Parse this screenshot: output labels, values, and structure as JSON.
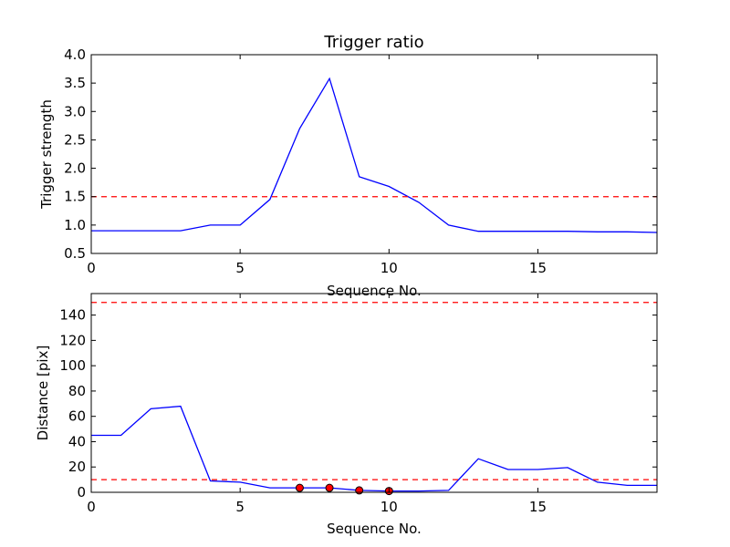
{
  "colors": {
    "line": "#0000ff",
    "threshold": "#ff0000",
    "marker_fill": "#ff0000",
    "marker_edge": "#000000",
    "axes": "#000000",
    "background": "#ffffff"
  },
  "chart_data": [
    {
      "type": "line",
      "title": "Trigger ratio",
      "xlabel": "Sequence No.",
      "ylabel": "Trigger strength",
      "xlim": [
        0,
        19
      ],
      "ylim": [
        0.5,
        4.0
      ],
      "xticks": [
        0,
        5,
        10,
        15
      ],
      "xtick_labels": [
        "0",
        "5",
        "10",
        "15"
      ],
      "yticks": [
        0.5,
        1.0,
        1.5,
        2.0,
        2.5,
        3.0,
        3.5,
        4.0
      ],
      "ytick_labels": [
        "0.5",
        "1.0",
        "1.5",
        "2.0",
        "2.5",
        "3.0",
        "3.5",
        "4.0"
      ],
      "grid": false,
      "series": [
        {
          "x": [
            0,
            1,
            2,
            3,
            4,
            5,
            6,
            7,
            8,
            9,
            10,
            11,
            12,
            13,
            14,
            15,
            16,
            17,
            18,
            19
          ],
          "values": [
            0.9,
            0.9,
            0.9,
            0.9,
            1.0,
            1.0,
            1.45,
            2.7,
            3.58,
            1.85,
            1.68,
            1.4,
            1.0,
            0.89,
            0.89,
            0.89,
            0.89,
            0.88,
            0.88,
            0.87
          ]
        }
      ],
      "hlines": [
        1.5
      ]
    },
    {
      "type": "line",
      "title": "",
      "xlabel": "Sequence No.",
      "ylabel": "Distance [pix]",
      "xlim": [
        0,
        19
      ],
      "ylim": [
        0,
        157
      ],
      "xticks": [
        0,
        5,
        10,
        15
      ],
      "xtick_labels": [
        "0",
        "5",
        "10",
        "15"
      ],
      "yticks": [
        0,
        20,
        40,
        60,
        80,
        100,
        120,
        140
      ],
      "ytick_labels": [
        "0",
        "20",
        "40",
        "60",
        "80",
        "100",
        "120",
        "140"
      ],
      "grid": false,
      "series": [
        {
          "x": [
            0,
            1,
            2,
            3,
            4,
            5,
            6,
            7,
            8,
            9,
            10,
            11,
            12,
            13,
            14,
            15,
            16,
            17,
            18,
            19
          ],
          "values": [
            45,
            45,
            66,
            68,
            9,
            8,
            3.5,
            3.5,
            3.5,
            1.5,
            1,
            1,
            1.5,
            26.5,
            18,
            18,
            19.5,
            8,
            5.5,
            5.5
          ]
        }
      ],
      "markers": {
        "x": [
          7,
          8,
          9,
          10
        ],
        "values": [
          3.5,
          3.5,
          1.5,
          1
        ]
      },
      "hlines": [
        150,
        10
      ]
    }
  ]
}
